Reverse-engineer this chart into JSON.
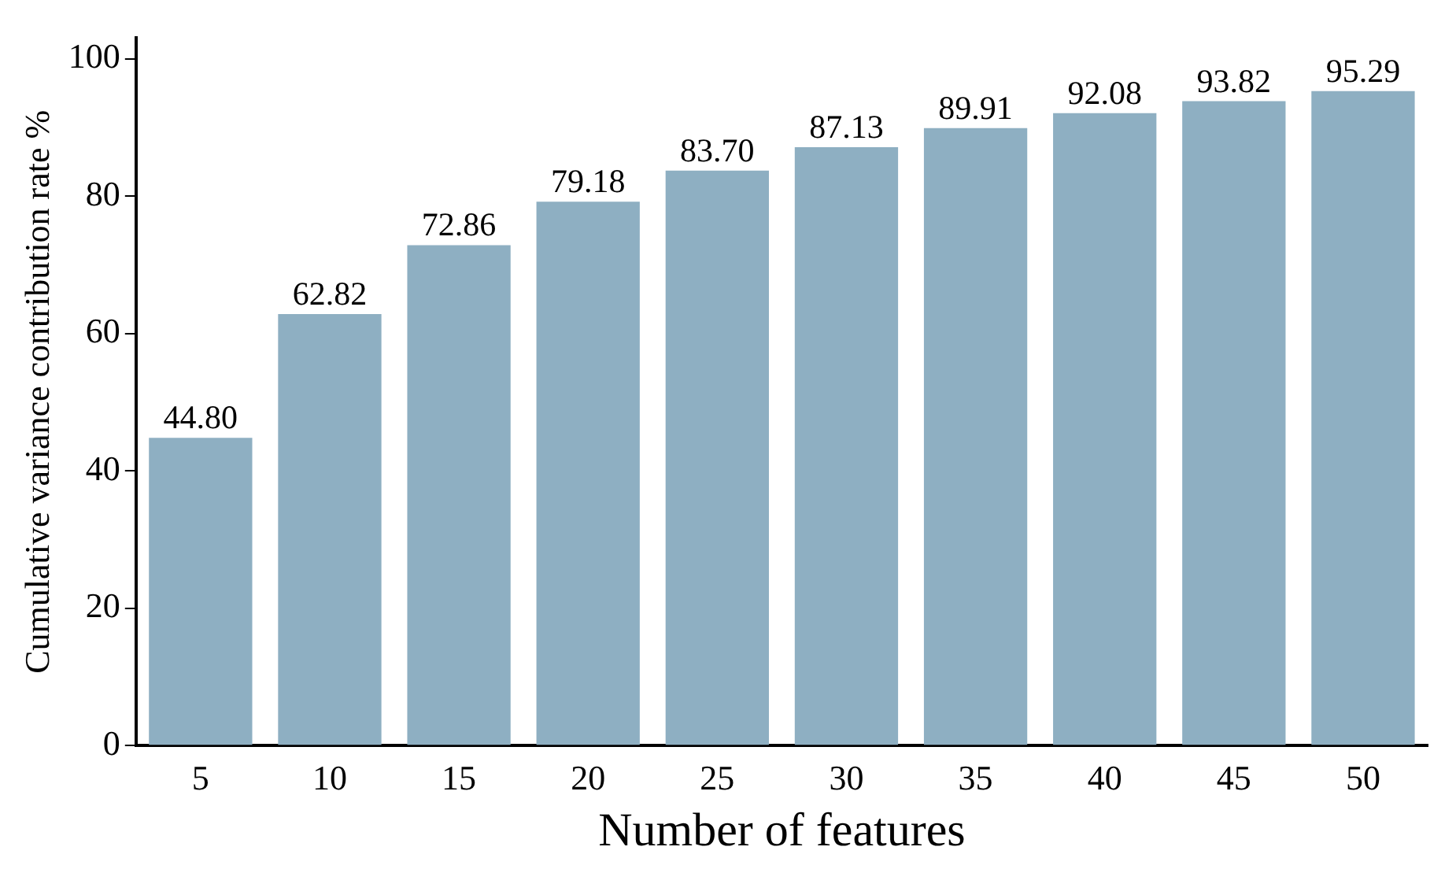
{
  "chart_data": {
    "type": "bar",
    "xlabel": "Number of features",
    "ylabel": "Cumulative variance contribution rate %",
    "categories": [
      "5",
      "10",
      "15",
      "20",
      "25",
      "30",
      "35",
      "40",
      "45",
      "50"
    ],
    "values": [
      44.8,
      62.82,
      72.86,
      79.18,
      83.7,
      87.13,
      89.91,
      92.08,
      93.82,
      95.29
    ],
    "value_labels": [
      "44.80",
      "62.82",
      "72.86",
      "79.18",
      "83.70",
      "87.13",
      "89.91",
      "92.08",
      "93.82",
      "95.29"
    ],
    "color": "#8eafc2",
    "ylim": [
      0,
      103
    ],
    "yticks": [
      0,
      20,
      40,
      60,
      80,
      100
    ],
    "grid": false,
    "legend": false
  }
}
